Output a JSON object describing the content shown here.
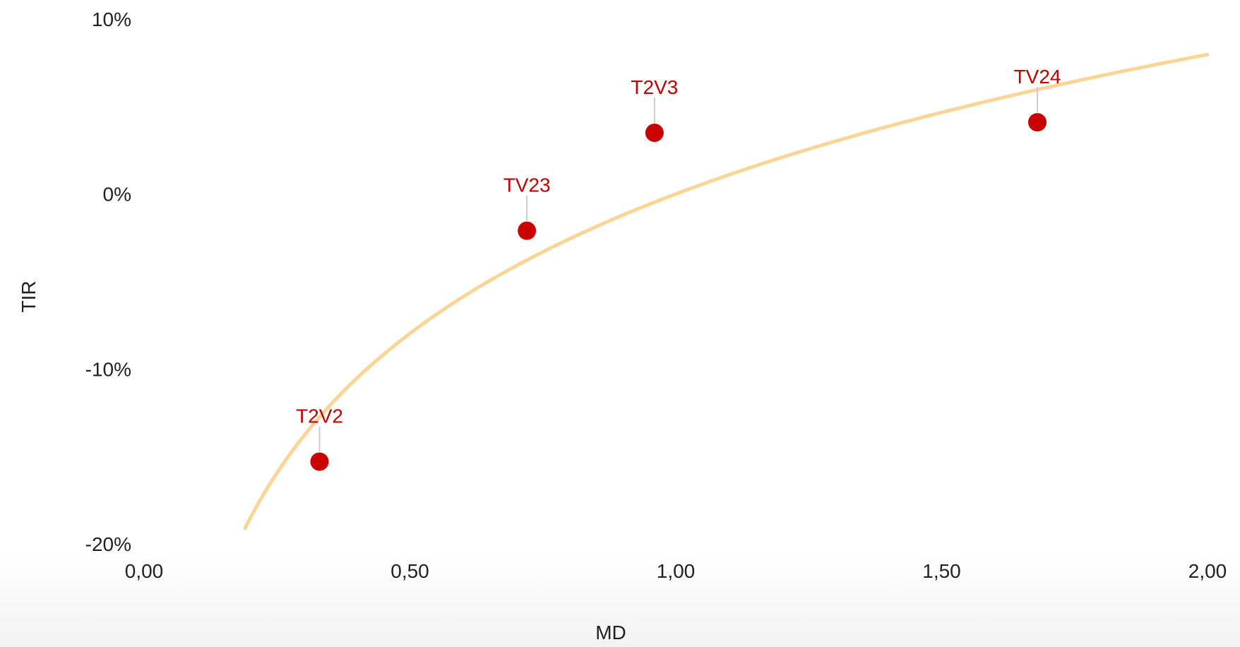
{
  "chart_data": {
    "type": "scatter",
    "xlabel": "MD",
    "ylabel": "TIR",
    "xlim": [
      0,
      2
    ],
    "ylim": [
      -20,
      10
    ],
    "x_ticks": [
      0,
      0.5,
      1,
      1.5,
      2
    ],
    "x_tick_labels": [
      "0,00",
      "0,50",
      "1,00",
      "1,50",
      "2,00"
    ],
    "y_ticks": [
      10,
      0,
      -10,
      -20
    ],
    "y_tick_labels": [
      "10%",
      "0%",
      "-10%",
      "-20%"
    ],
    "grid": false,
    "series": [
      {
        "points": [
          {
            "label": "T2V2",
            "x": 0.33,
            "y": -15.3
          },
          {
            "label": "TV23",
            "x": 0.72,
            "y": -2.1
          },
          {
            "label": "T2V3",
            "x": 0.96,
            "y": 3.5
          },
          {
            "label": "TV24",
            "x": 1.68,
            "y": 4.1
          }
        ]
      }
    ],
    "trendline": {
      "type": "logarithmic",
      "x_start": 0.19,
      "x_end": 2.0,
      "a": 0.0,
      "b": 11.5
    },
    "colors": {
      "points": "#c80000",
      "labels": "#c00000",
      "trendline": "#fad596",
      "leader": "#cccccc",
      "text": "#222222"
    }
  }
}
